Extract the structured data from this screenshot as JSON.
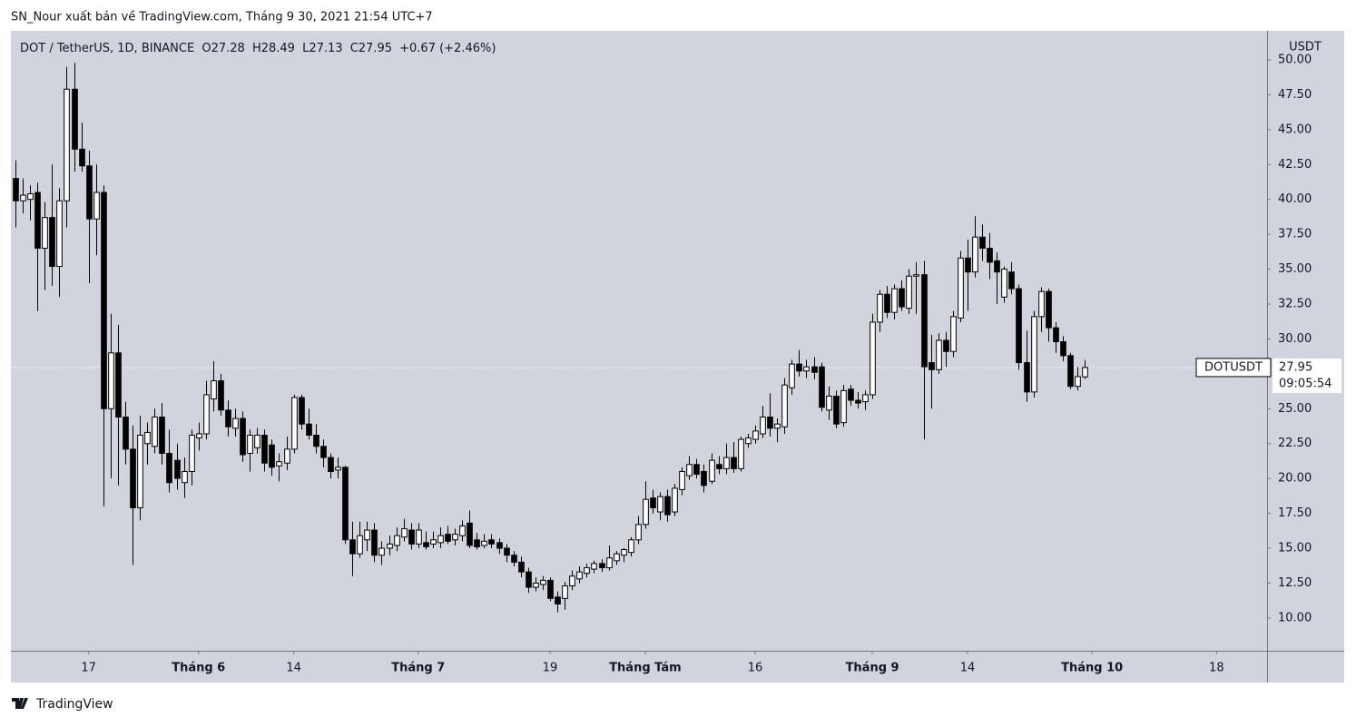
{
  "header": {
    "publisher": "SN_Nour xuất bản về TradingView.com, Tháng 9 30, 2021 21:54 UTC+7"
  },
  "chart_data": {
    "type": "candlestick",
    "symbol": "DOT / TetherUS, 1D, BINANCE",
    "ohlc_labels": [
      "O",
      "H",
      "L",
      "C"
    ],
    "change": "+0.67 (+2.46%)",
    "currency": "USDT",
    "price_tag": "DOTUSDT",
    "countdown": "09:05:54",
    "up_color": "#ffffff",
    "down_color": "#000000",
    "candles": [
      [
        41.5,
        42.8,
        38.0,
        39.9
      ],
      [
        39.9,
        41.5,
        39.0,
        40.3
      ],
      [
        40.0,
        41.0,
        38.5,
        40.4
      ],
      [
        40.5,
        41.2,
        32.0,
        36.5
      ],
      [
        36.5,
        39.8,
        33.5,
        38.7
      ],
      [
        38.7,
        42.5,
        33.8,
        35.2
      ],
      [
        35.2,
        40.8,
        33.0,
        39.9
      ],
      [
        39.9,
        49.5,
        38.0,
        47.9
      ],
      [
        47.9,
        49.8,
        42.0,
        43.6
      ],
      [
        43.6,
        45.5,
        42.0,
        42.4
      ],
      [
        42.4,
        43.5,
        34.0,
        38.6
      ],
      [
        38.6,
        42.5,
        36.0,
        40.5
      ],
      [
        40.5,
        41.0,
        18.0,
        25.0
      ],
      [
        25.0,
        31.8,
        20.0,
        29.0
      ],
      [
        29.0,
        31.0,
        19.5,
        24.4
      ],
      [
        24.4,
        25.5,
        21.0,
        22.1
      ],
      [
        22.1,
        23.8,
        13.8,
        17.9
      ],
      [
        17.9,
        24.5,
        17.0,
        23.1
      ],
      [
        22.5,
        24.0,
        21.0,
        23.3
      ],
      [
        22.3,
        25.0,
        21.8,
        24.4
      ],
      [
        24.4,
        25.4,
        21.0,
        21.8
      ],
      [
        21.8,
        23.5,
        19.0,
        19.7
      ],
      [
        21.3,
        22.5,
        19.2,
        20.0
      ],
      [
        19.7,
        21.5,
        18.6,
        20.5
      ],
      [
        20.5,
        23.5,
        19.5,
        23.1
      ],
      [
        22.9,
        24.0,
        22.0,
        23.2
      ],
      [
        23.2,
        27.0,
        22.8,
        26.0
      ],
      [
        25.7,
        28.4,
        24.8,
        27.0
      ],
      [
        27.0,
        27.5,
        24.5,
        24.9
      ],
      [
        24.9,
        25.6,
        23.0,
        23.7
      ],
      [
        23.6,
        25.0,
        23.0,
        24.3
      ],
      [
        24.3,
        24.8,
        21.2,
        21.7
      ],
      [
        21.8,
        23.5,
        20.5,
        23.1
      ],
      [
        22.2,
        23.6,
        21.8,
        23.1
      ],
      [
        23.1,
        23.5,
        20.5,
        21.1
      ],
      [
        22.4,
        22.8,
        20.2,
        20.8
      ],
      [
        20.9,
        21.8,
        19.8,
        21.2
      ],
      [
        21.1,
        23.0,
        20.6,
        22.1
      ],
      [
        22.1,
        26.0,
        21.8,
        25.8
      ],
      [
        25.8,
        26.0,
        23.5,
        23.9
      ],
      [
        23.9,
        25.0,
        22.8,
        23.1
      ],
      [
        23.1,
        23.9,
        21.8,
        22.3
      ],
      [
        22.3,
        22.8,
        20.8,
        21.5
      ],
      [
        21.5,
        21.8,
        20.0,
        20.5
      ],
      [
        20.6,
        21.5,
        20.0,
        20.8
      ],
      [
        20.8,
        20.9,
        15.3,
        15.6
      ],
      [
        15.6,
        16.9,
        13.0,
        14.6
      ],
      [
        14.6,
        16.9,
        14.3,
        15.9
      ],
      [
        15.6,
        16.9,
        14.8,
        16.3
      ],
      [
        16.3,
        16.8,
        14.0,
        14.5
      ],
      [
        14.5,
        15.5,
        13.8,
        15.0
      ],
      [
        15.0,
        15.9,
        14.5,
        15.3
      ],
      [
        15.2,
        16.5,
        14.8,
        15.9
      ],
      [
        15.8,
        17.1,
        15.5,
        16.4
      ],
      [
        16.3,
        16.8,
        14.9,
        15.3
      ],
      [
        15.3,
        16.8,
        15.0,
        16.3
      ],
      [
        15.4,
        16.2,
        14.9,
        15.1
      ],
      [
        15.3,
        16.2,
        15.0,
        15.6
      ],
      [
        15.4,
        16.5,
        15.0,
        15.9
      ],
      [
        16.0,
        16.6,
        15.3,
        15.5
      ],
      [
        15.6,
        16.4,
        15.2,
        16.0
      ],
      [
        15.9,
        17.0,
        15.5,
        16.6
      ],
      [
        16.8,
        17.7,
        15.0,
        15.2
      ],
      [
        15.6,
        16.1,
        14.9,
        15.1
      ],
      [
        15.2,
        16.0,
        15.0,
        15.5
      ],
      [
        15.6,
        16.0,
        15.0,
        15.3
      ],
      [
        15.4,
        15.7,
        14.6,
        15.0
      ],
      [
        15.0,
        15.3,
        14.0,
        14.5
      ],
      [
        14.5,
        14.8,
        13.7,
        14.0
      ],
      [
        14.0,
        14.4,
        12.9,
        13.3
      ],
      [
        13.3,
        13.6,
        11.8,
        12.2
      ],
      [
        12.2,
        12.9,
        11.9,
        12.5
      ],
      [
        12.4,
        13.0,
        12.0,
        12.7
      ],
      [
        12.7,
        12.9,
        11.2,
        11.4
      ],
      [
        11.5,
        11.9,
        10.4,
        11.0
      ],
      [
        11.4,
        12.6,
        10.6,
        12.3
      ],
      [
        12.3,
        13.4,
        12.0,
        13.0
      ],
      [
        12.8,
        13.7,
        12.5,
        13.3
      ],
      [
        13.2,
        13.9,
        12.9,
        13.6
      ],
      [
        13.5,
        14.1,
        13.2,
        13.9
      ],
      [
        13.9,
        14.2,
        13.3,
        13.6
      ],
      [
        13.6,
        15.2,
        13.4,
        14.3
      ],
      [
        14.1,
        14.8,
        13.8,
        14.6
      ],
      [
        14.5,
        15.0,
        14.0,
        14.9
      ],
      [
        14.7,
        15.8,
        14.4,
        15.6
      ],
      [
        15.6,
        17.3,
        15.3,
        16.7
      ],
      [
        16.7,
        19.8,
        16.4,
        18.5
      ],
      [
        18.6,
        19.2,
        17.5,
        17.9
      ],
      [
        17.6,
        19.0,
        17.0,
        18.7
      ],
      [
        18.7,
        19.2,
        16.9,
        17.4
      ],
      [
        17.6,
        19.6,
        17.3,
        19.3
      ],
      [
        19.2,
        20.8,
        18.8,
        20.5
      ],
      [
        20.2,
        21.6,
        19.9,
        21.0
      ],
      [
        21.0,
        21.4,
        20.0,
        20.3
      ],
      [
        20.5,
        21.0,
        19.0,
        19.5
      ],
      [
        19.8,
        21.8,
        19.6,
        21.3
      ],
      [
        21.0,
        21.6,
        20.3,
        20.7
      ],
      [
        20.7,
        22.5,
        20.3,
        21.5
      ],
      [
        21.5,
        22.6,
        20.4,
        20.7
      ],
      [
        20.7,
        23.0,
        20.5,
        22.8
      ],
      [
        22.5,
        23.2,
        22.2,
        22.9
      ],
      [
        22.8,
        23.8,
        22.5,
        23.4
      ],
      [
        23.2,
        25.2,
        22.9,
        24.4
      ],
      [
        24.4,
        26.1,
        23.0,
        23.6
      ],
      [
        23.6,
        24.3,
        22.6,
        23.9
      ],
      [
        23.7,
        27.2,
        23.2,
        26.7
      ],
      [
        26.5,
        28.5,
        26.0,
        28.2
      ],
      [
        28.2,
        29.2,
        27.3,
        27.7
      ],
      [
        27.7,
        28.5,
        27.2,
        28.0
      ],
      [
        28.0,
        28.7,
        27.1,
        27.6
      ],
      [
        28.0,
        28.3,
        24.8,
        25.1
      ],
      [
        24.9,
        26.6,
        24.2,
        25.9
      ],
      [
        25.9,
        26.3,
        23.6,
        23.9
      ],
      [
        24.0,
        26.7,
        23.7,
        26.3
      ],
      [
        26.4,
        26.7,
        25.2,
        25.6
      ],
      [
        25.6,
        26.2,
        25.0,
        25.4
      ],
      [
        25.5,
        26.3,
        24.9,
        26.0
      ],
      [
        26.0,
        31.8,
        25.7,
        31.2
      ],
      [
        31.2,
        33.5,
        30.5,
        33.2
      ],
      [
        33.2,
        33.8,
        31.5,
        31.9
      ],
      [
        31.9,
        33.9,
        31.4,
        33.6
      ],
      [
        33.6,
        34.2,
        32.0,
        32.3
      ],
      [
        32.2,
        35.0,
        31.8,
        34.5
      ],
      [
        34.5,
        35.5,
        31.8,
        34.6
      ],
      [
        34.6,
        35.6,
        22.8,
        28.0
      ],
      [
        28.3,
        30.3,
        25.0,
        27.8
      ],
      [
        27.8,
        30.4,
        27.5,
        29.9
      ],
      [
        29.9,
        30.5,
        28.0,
        29.1
      ],
      [
        29.1,
        32.0,
        28.7,
        31.6
      ],
      [
        31.5,
        36.3,
        31.2,
        35.8
      ],
      [
        35.8,
        37.1,
        32.0,
        34.8
      ],
      [
        34.8,
        38.8,
        34.4,
        37.3
      ],
      [
        37.3,
        38.2,
        35.6,
        36.5
      ],
      [
        36.5,
        37.6,
        34.3,
        35.5
      ],
      [
        35.6,
        36.2,
        32.5,
        34.8
      ],
      [
        33.0,
        35.2,
        32.6,
        35.0
      ],
      [
        34.8,
        35.5,
        33.2,
        33.6
      ],
      [
        33.6,
        33.9,
        27.8,
        28.3
      ],
      [
        28.3,
        30.6,
        25.5,
        26.2
      ],
      [
        26.2,
        32.0,
        25.8,
        31.6
      ],
      [
        31.6,
        33.7,
        30.5,
        33.4
      ],
      [
        33.4,
        33.6,
        29.8,
        30.8
      ],
      [
        30.8,
        31.2,
        29.0,
        29.8
      ],
      [
        29.8,
        30.2,
        28.4,
        28.8
      ],
      [
        28.8,
        29.0,
        26.4,
        26.6
      ],
      [
        26.6,
        28.0,
        26.3,
        27.3
      ],
      [
        27.28,
        28.49,
        27.13,
        27.95
      ]
    ],
    "xlim": [
      -0.62,
      170.9
    ],
    "xticks": [
      {
        "value": 10,
        "label": "17"
      },
      {
        "value": 25,
        "label": "Tháng 6"
      },
      {
        "value": 38,
        "label": "14"
      },
      {
        "value": 55,
        "label": "Tháng 7"
      },
      {
        "value": 73,
        "label": "19"
      },
      {
        "value": 86,
        "label": "Tháng Tám"
      },
      {
        "value": 101,
        "label": "16"
      },
      {
        "value": 117,
        "label": "Tháng 9"
      },
      {
        "value": 130,
        "label": "14"
      },
      {
        "value": 147,
        "label": "Tháng 10"
      },
      {
        "value": 164,
        "label": "18"
      }
    ],
    "ylim": [
      7.65,
      52.08
    ],
    "yticks": [
      {
        "value": 10,
        "label": "10.00"
      },
      {
        "value": 12.5,
        "label": "12.50"
      },
      {
        "value": 15,
        "label": "15.00"
      },
      {
        "value": 17.5,
        "label": "17.50"
      },
      {
        "value": 20,
        "label": "20.00"
      },
      {
        "value": 22.5,
        "label": "22.50"
      },
      {
        "value": 25,
        "label": "25.00"
      },
      {
        "value": 27.5,
        "label": "27.50"
      },
      {
        "value": 30,
        "label": "30.00"
      },
      {
        "value": 32.5,
        "label": "32.50"
      },
      {
        "value": 35,
        "label": "35.00"
      },
      {
        "value": 37.5,
        "label": "37.50"
      },
      {
        "value": 40,
        "label": "40.00"
      },
      {
        "value": 42.5,
        "label": "42.50"
      },
      {
        "value": 45,
        "label": "45.00"
      },
      {
        "value": 47.5,
        "label": "47.50"
      },
      {
        "value": 50,
        "label": "50.00"
      }
    ],
    "grid": false
  },
  "footer": {
    "brand": "TradingView"
  }
}
